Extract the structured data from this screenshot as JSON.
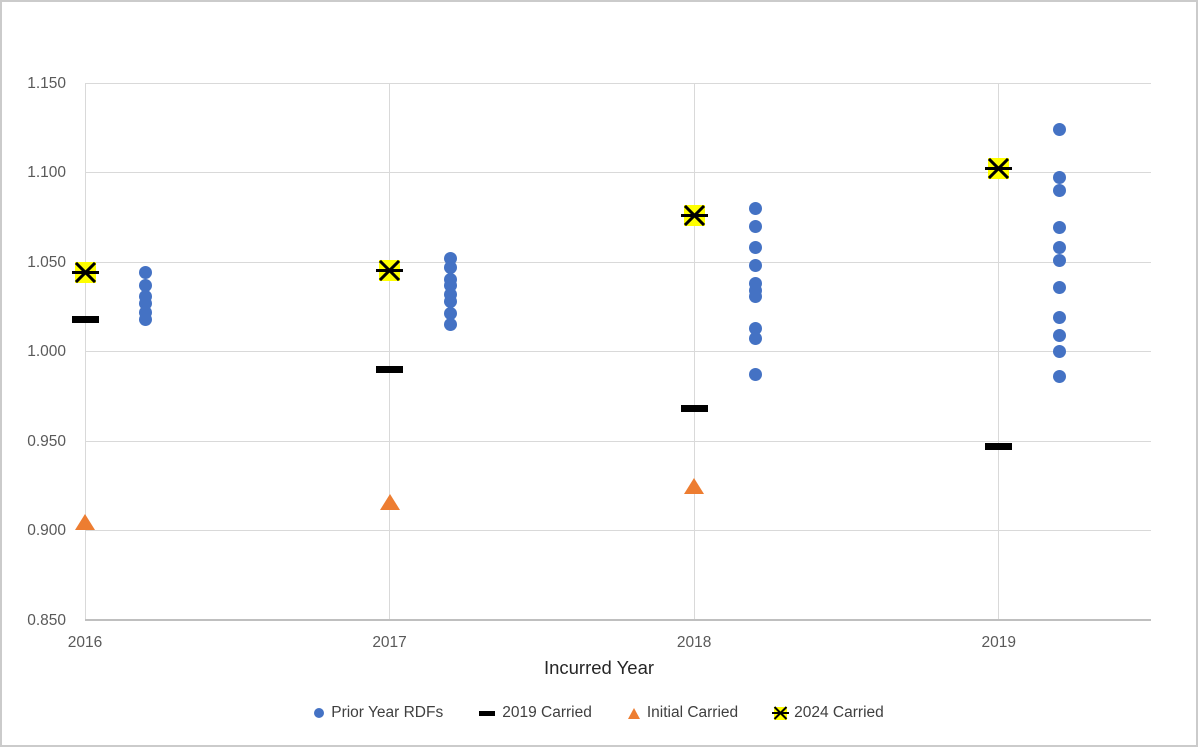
{
  "chart_data": {
    "type": "scatter",
    "title": "",
    "xlabel": "Incurred Year",
    "ylabel": "",
    "ylim": [
      0.85,
      1.15
    ],
    "ytick_step": 0.05,
    "ytick_labels": [
      "0.850",
      "0.900",
      "0.950",
      "1.000",
      "1.050",
      "1.100",
      "1.150"
    ],
    "categories": [
      "2016",
      "2017",
      "2018",
      "2019"
    ],
    "grid": true,
    "legend_position": "bottom",
    "series": [
      {
        "name": "Prior Year RDFs",
        "marker": "circle",
        "color": "#4472C4",
        "x_offset": 0.2,
        "values_by_year": [
          [
            1.044,
            1.037,
            1.031,
            1.027,
            1.022,
            1.018
          ],
          [
            1.052,
            1.047,
            1.04,
            1.037,
            1.032,
            1.028,
            1.021,
            1.015
          ],
          [
            1.08,
            1.07,
            1.058,
            1.048,
            1.038,
            1.034,
            1.031,
            1.013,
            1.007,
            0.987
          ],
          [
            1.124,
            1.097,
            1.09,
            1.069,
            1.058,
            1.051,
            1.036,
            1.019,
            1.009,
            1.0,
            0.986
          ]
        ]
      },
      {
        "name": "2019 Carried",
        "marker": "dash",
        "color": "#000000",
        "x_offset": 0,
        "values_by_year": [
          [
            1.018
          ],
          [
            0.99
          ],
          [
            0.968
          ],
          [
            0.947
          ]
        ]
      },
      {
        "name": "Initial Carried",
        "marker": "triangle",
        "color": "#ED7D31",
        "x_offset": 0,
        "values_by_year": [
          [
            0.905
          ],
          [
            0.916
          ],
          [
            0.925
          ],
          []
        ]
      },
      {
        "name": "2024 Carried",
        "marker": "xmark",
        "color": "#FFFF00",
        "x_offset": 0,
        "values_by_year": [
          [
            1.044
          ],
          [
            1.045
          ],
          [
            1.076
          ],
          [
            1.102
          ]
        ]
      }
    ],
    "colors": {
      "gridline": "#d9d9d9",
      "axis_line": "#bfbfbf",
      "tick_text": "#595959",
      "axis_title_text": "#262626",
      "legend_text": "#3f3f3f",
      "xmark_stroke": "#000000"
    }
  }
}
